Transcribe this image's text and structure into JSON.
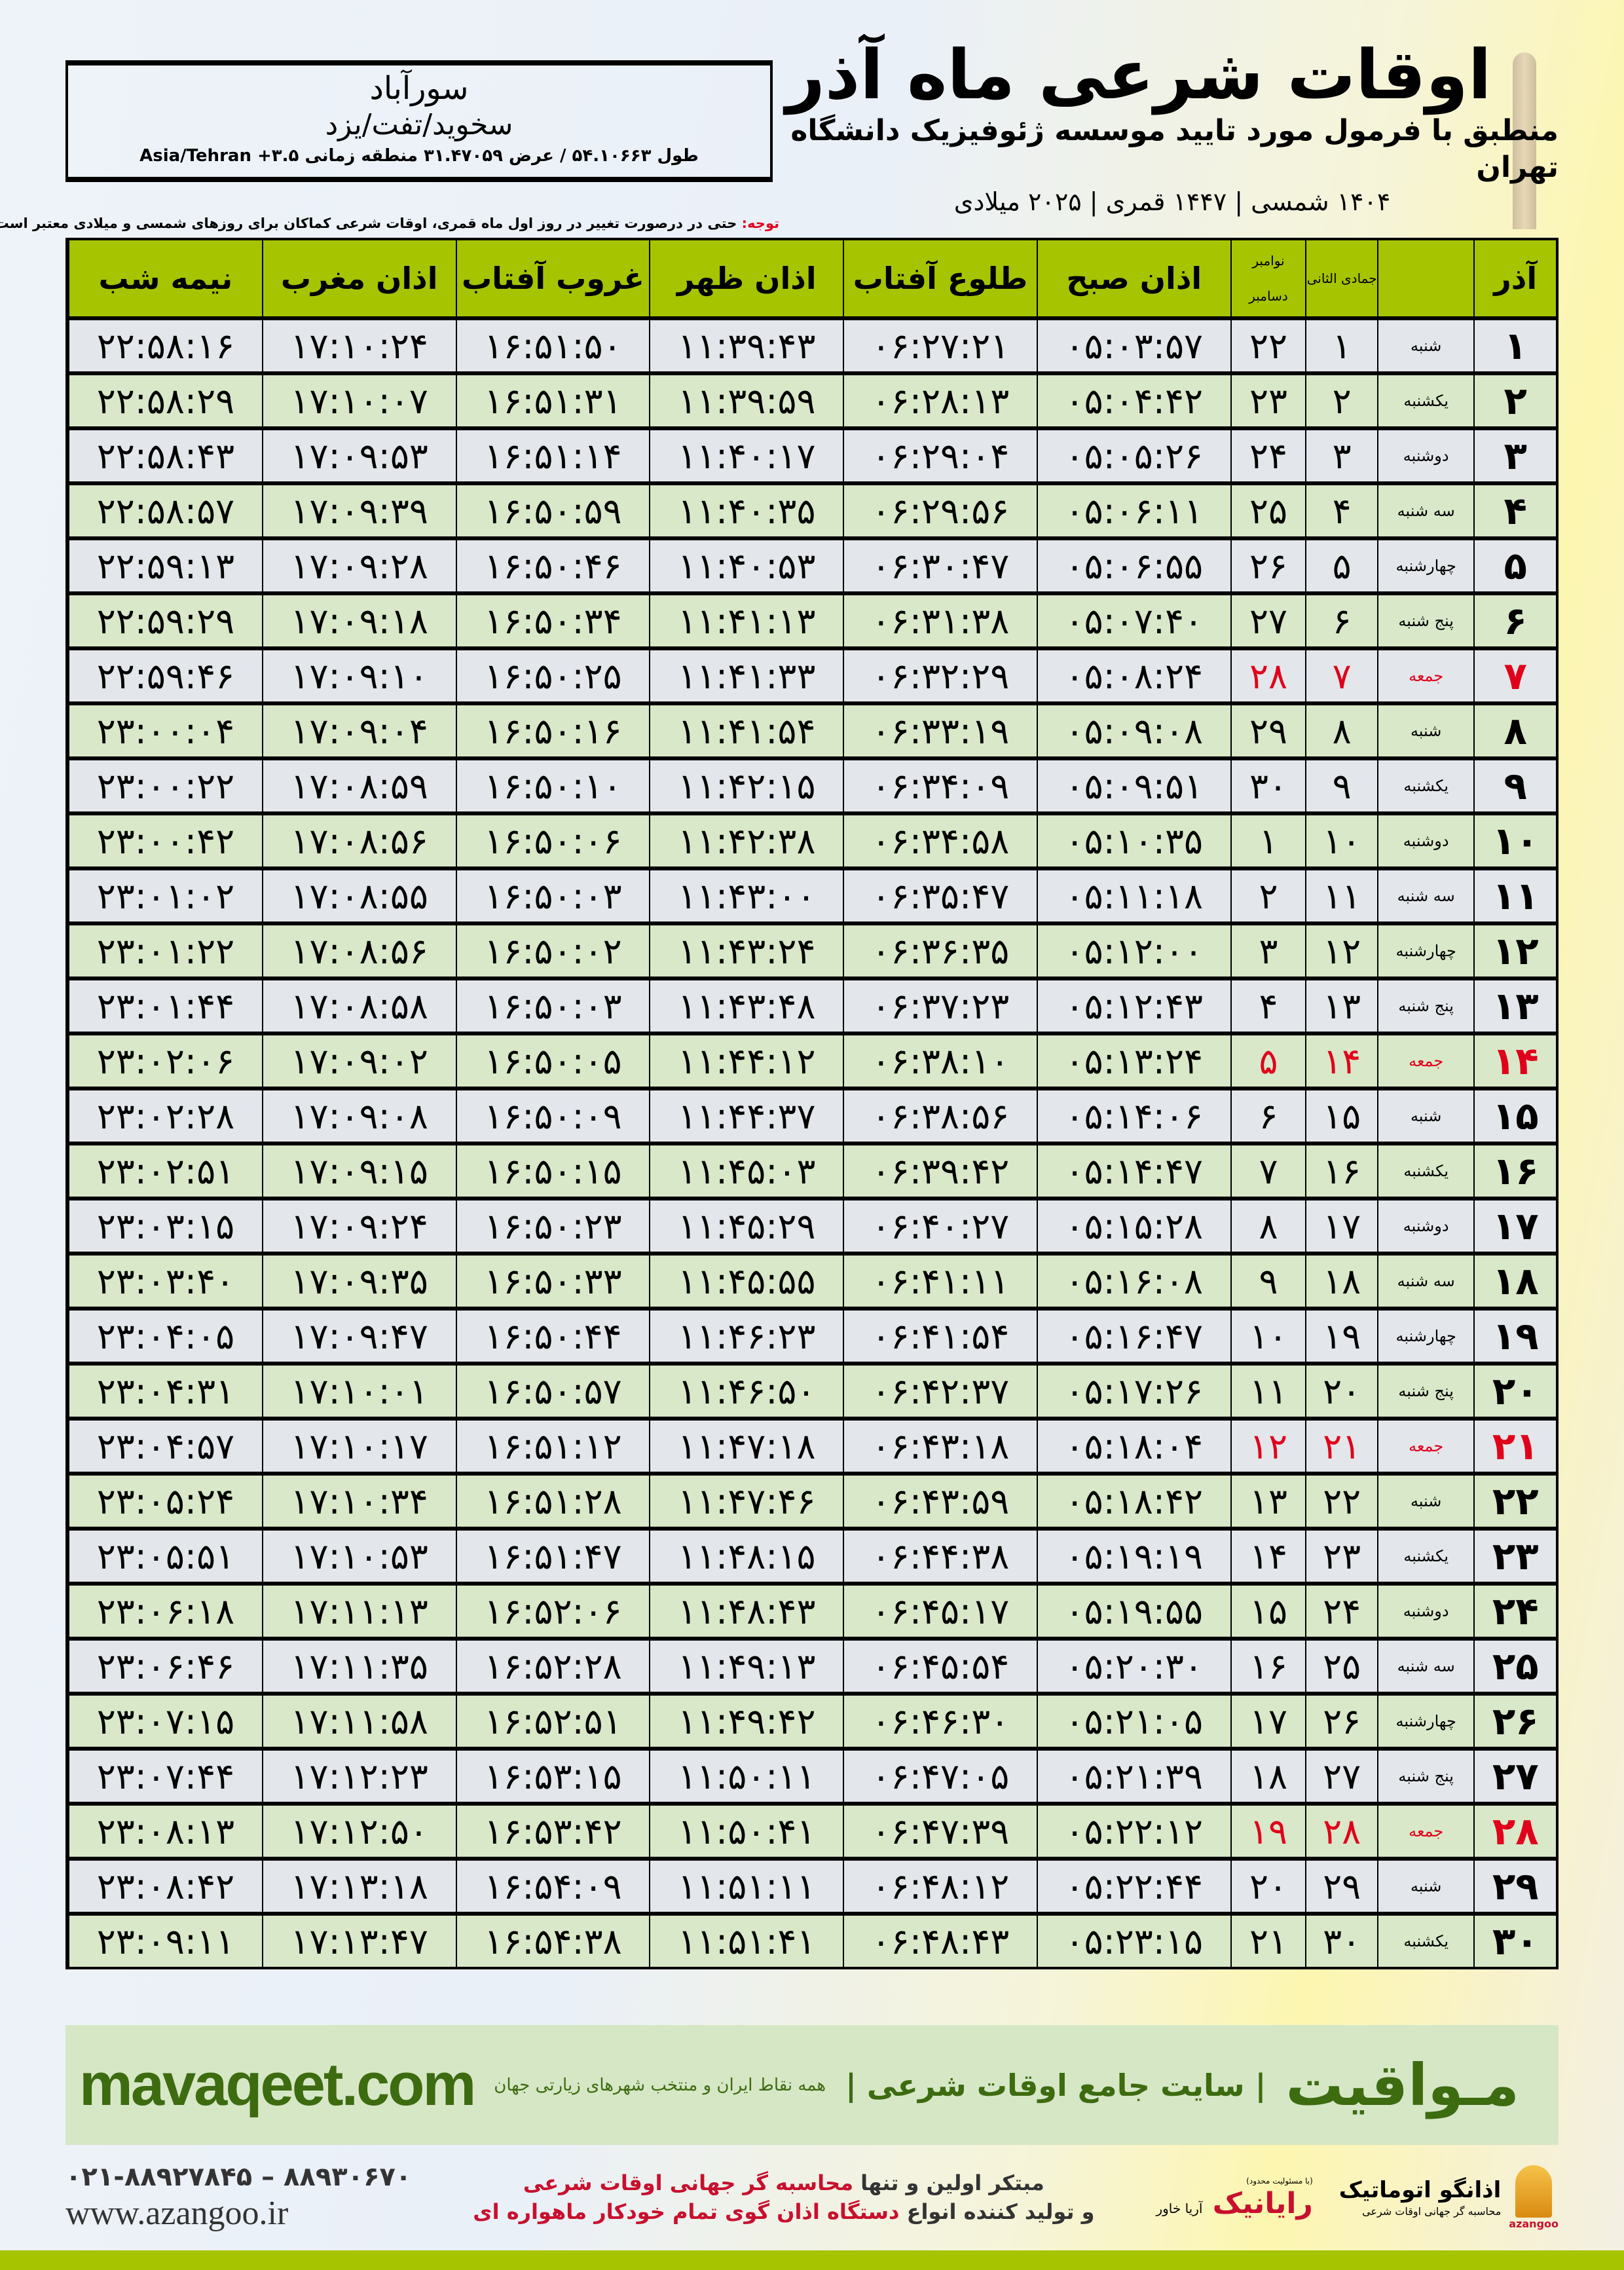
{
  "info": {
    "city": "سورآباد",
    "region": "سخوید/تفت/یزد",
    "coords": "طول ۵۴.۱۰۶۶۳ / عرض ۳۱.۴۷۰۵۹ منطقه زمانی ۳.۵+ Asia/Tehran"
  },
  "header": {
    "title": "اوقات شرعی ماه آذر",
    "subtitle": "منطبق با فرمول مورد تایید موسسه ژئوفیزیک دانشگاه تهران",
    "dates": "۱۴۰۴ شمسی | ۱۴۴۷ قمری | ۲۰۲۵ میلادی"
  },
  "note": {
    "label": "توجه:",
    "text": " حتی در درصورت تغییر در روز اول ماه قمری، اوقات شرعی کماکان برای روزهای شمسی و میلادی معتبر است."
  },
  "table": {
    "columns": {
      "day": "آذر",
      "hijri": "جمادی الثانی",
      "greg_top": "نوامبر",
      "greg_bottom": "دسامبر",
      "fajr": "اذان صبح",
      "sunrise": "طلوع آفتاب",
      "dhuhr": "اذان ظهر",
      "sunset": "غروب آفتاب",
      "maghrib": "اذان مغرب",
      "midnight": "نیمه شب"
    },
    "holiday_color": "#e0001b",
    "header_color": "#a6c400",
    "rows": [
      [
        "۱",
        "شنبه",
        "۱",
        "۲۲",
        "۰۵:۰۳:۵۷",
        "۰۶:۲۷:۲۱",
        "۱۱:۳۹:۴۳",
        "۱۶:۵۱:۵۰",
        "۱۷:۱۰:۲۴",
        "۲۲:۵۸:۱۶"
      ],
      [
        "۲",
        "یکشنبه",
        "۲",
        "۲۳",
        "۰۵:۰۴:۴۲",
        "۰۶:۲۸:۱۳",
        "۱۱:۳۹:۵۹",
        "۱۶:۵۱:۳۱",
        "۱۷:۱۰:۰۷",
        "۲۲:۵۸:۲۹"
      ],
      [
        "۳",
        "دوشنبه",
        "۳",
        "۲۴",
        "۰۵:۰۵:۲۶",
        "۰۶:۲۹:۰۴",
        "۱۱:۴۰:۱۷",
        "۱۶:۵۱:۱۴",
        "۱۷:۰۹:۵۳",
        "۲۲:۵۸:۴۳"
      ],
      [
        "۴",
        "سه شنبه",
        "۴",
        "۲۵",
        "۰۵:۰۶:۱۱",
        "۰۶:۲۹:۵۶",
        "۱۱:۴۰:۳۵",
        "۱۶:۵۰:۵۹",
        "۱۷:۰۹:۳۹",
        "۲۲:۵۸:۵۷"
      ],
      [
        "۵",
        "چهارشنبه",
        "۵",
        "۲۶",
        "۰۵:۰۶:۵۵",
        "۰۶:۳۰:۴۷",
        "۱۱:۴۰:۵۳",
        "۱۶:۵۰:۴۶",
        "۱۷:۰۹:۲۸",
        "۲۲:۵۹:۱۳"
      ],
      [
        "۶",
        "پنج شنبه",
        "۶",
        "۲۷",
        "۰۵:۰۷:۴۰",
        "۰۶:۳۱:۳۸",
        "۱۱:۴۱:۱۳",
        "۱۶:۵۰:۳۴",
        "۱۷:۰۹:۱۸",
        "۲۲:۵۹:۲۹"
      ],
      [
        "۷",
        "جمعه",
        "۷",
        "۲۸",
        "۰۵:۰۸:۲۴",
        "۰۶:۳۲:۲۹",
        "۱۱:۴۱:۳۳",
        "۱۶:۵۰:۲۵",
        "۱۷:۰۹:۱۰",
        "۲۲:۵۹:۴۶"
      ],
      [
        "۸",
        "شنبه",
        "۸",
        "۲۹",
        "۰۵:۰۹:۰۸",
        "۰۶:۳۳:۱۹",
        "۱۱:۴۱:۵۴",
        "۱۶:۵۰:۱۶",
        "۱۷:۰۹:۰۴",
        "۲۳:۰۰:۰۴"
      ],
      [
        "۹",
        "یکشنبه",
        "۹",
        "۳۰",
        "۰۵:۰۹:۵۱",
        "۰۶:۳۴:۰۹",
        "۱۱:۴۲:۱۵",
        "۱۶:۵۰:۱۰",
        "۱۷:۰۸:۵۹",
        "۲۳:۰۰:۲۲"
      ],
      [
        "۱۰",
        "دوشنبه",
        "۱۰",
        "۱",
        "۰۵:۱۰:۳۵",
        "۰۶:۳۴:۵۸",
        "۱۱:۴۲:۳۸",
        "۱۶:۵۰:۰۶",
        "۱۷:۰۸:۵۶",
        "۲۳:۰۰:۴۲"
      ],
      [
        "۱۱",
        "سه شنبه",
        "۱۱",
        "۲",
        "۰۵:۱۱:۱۸",
        "۰۶:۳۵:۴۷",
        "۱۱:۴۳:۰۰",
        "۱۶:۵۰:۰۳",
        "۱۷:۰۸:۵۵",
        "۲۳:۰۱:۰۲"
      ],
      [
        "۱۲",
        "چهارشنبه",
        "۱۲",
        "۳",
        "۰۵:۱۲:۰۰",
        "۰۶:۳۶:۳۵",
        "۱۱:۴۳:۲۴",
        "۱۶:۵۰:۰۲",
        "۱۷:۰۸:۵۶",
        "۲۳:۰۱:۲۲"
      ],
      [
        "۱۳",
        "پنج شنبه",
        "۱۳",
        "۴",
        "۰۵:۱۲:۴۳",
        "۰۶:۳۷:۲۳",
        "۱۱:۴۳:۴۸",
        "۱۶:۵۰:۰۳",
        "۱۷:۰۸:۵۸",
        "۲۳:۰۱:۴۴"
      ],
      [
        "۱۴",
        "جمعه",
        "۱۴",
        "۵",
        "۰۵:۱۳:۲۴",
        "۰۶:۳۸:۱۰",
        "۱۱:۴۴:۱۲",
        "۱۶:۵۰:۰۵",
        "۱۷:۰۹:۰۲",
        "۲۳:۰۲:۰۶"
      ],
      [
        "۱۵",
        "شنبه",
        "۱۵",
        "۶",
        "۰۵:۱۴:۰۶",
        "۰۶:۳۸:۵۶",
        "۱۱:۴۴:۳۷",
        "۱۶:۵۰:۰۹",
        "۱۷:۰۹:۰۸",
        "۲۳:۰۲:۲۸"
      ],
      [
        "۱۶",
        "یکشنبه",
        "۱۶",
        "۷",
        "۰۵:۱۴:۴۷",
        "۰۶:۳۹:۴۲",
        "۱۱:۴۵:۰۳",
        "۱۶:۵۰:۱۵",
        "۱۷:۰۹:۱۵",
        "۲۳:۰۲:۵۱"
      ],
      [
        "۱۷",
        "دوشنبه",
        "۱۷",
        "۸",
        "۰۵:۱۵:۲۸",
        "۰۶:۴۰:۲۷",
        "۱۱:۴۵:۲۹",
        "۱۶:۵۰:۲۳",
        "۱۷:۰۹:۲۴",
        "۲۳:۰۳:۱۵"
      ],
      [
        "۱۸",
        "سه شنبه",
        "۱۸",
        "۹",
        "۰۵:۱۶:۰۸",
        "۰۶:۴۱:۱۱",
        "۱۱:۴۵:۵۵",
        "۱۶:۵۰:۳۳",
        "۱۷:۰۹:۳۵",
        "۲۳:۰۳:۴۰"
      ],
      [
        "۱۹",
        "چهارشنبه",
        "۱۹",
        "۱۰",
        "۰۵:۱۶:۴۷",
        "۰۶:۴۱:۵۴",
        "۱۱:۴۶:۲۳",
        "۱۶:۵۰:۴۴",
        "۱۷:۰۹:۴۷",
        "۲۳:۰۴:۰۵"
      ],
      [
        "۲۰",
        "پنج شنبه",
        "۲۰",
        "۱۱",
        "۰۵:۱۷:۲۶",
        "۰۶:۴۲:۳۷",
        "۱۱:۴۶:۵۰",
        "۱۶:۵۰:۵۷",
        "۱۷:۱۰:۰۱",
        "۲۳:۰۴:۳۱"
      ],
      [
        "۲۱",
        "جمعه",
        "۲۱",
        "۱۲",
        "۰۵:۱۸:۰۴",
        "۰۶:۴۳:۱۸",
        "۱۱:۴۷:۱۸",
        "۱۶:۵۱:۱۲",
        "۱۷:۱۰:۱۷",
        "۲۳:۰۴:۵۷"
      ],
      [
        "۲۲",
        "شنبه",
        "۲۲",
        "۱۳",
        "۰۵:۱۸:۴۲",
        "۰۶:۴۳:۵۹",
        "۱۱:۴۷:۴۶",
        "۱۶:۵۱:۲۸",
        "۱۷:۱۰:۳۴",
        "۲۳:۰۵:۲۴"
      ],
      [
        "۲۳",
        "یکشنبه",
        "۲۳",
        "۱۴",
        "۰۵:۱۹:۱۹",
        "۰۶:۴۴:۳۸",
        "۱۱:۴۸:۱۵",
        "۱۶:۵۱:۴۷",
        "۱۷:۱۰:۵۳",
        "۲۳:۰۵:۵۱"
      ],
      [
        "۲۴",
        "دوشنبه",
        "۲۴",
        "۱۵",
        "۰۵:۱۹:۵۵",
        "۰۶:۴۵:۱۷",
        "۱۱:۴۸:۴۳",
        "۱۶:۵۲:۰۶",
        "۱۷:۱۱:۱۳",
        "۲۳:۰۶:۱۸"
      ],
      [
        "۲۵",
        "سه شنبه",
        "۲۵",
        "۱۶",
        "۰۵:۲۰:۳۰",
        "۰۶:۴۵:۵۴",
        "۱۱:۴۹:۱۳",
        "۱۶:۵۲:۲۸",
        "۱۷:۱۱:۳۵",
        "۲۳:۰۶:۴۶"
      ],
      [
        "۲۶",
        "چهارشنبه",
        "۲۶",
        "۱۷",
        "۰۵:۲۱:۰۵",
        "۰۶:۴۶:۳۰",
        "۱۱:۴۹:۴۲",
        "۱۶:۵۲:۵۱",
        "۱۷:۱۱:۵۸",
        "۲۳:۰۷:۱۵"
      ],
      [
        "۲۷",
        "پنج شنبه",
        "۲۷",
        "۱۸",
        "۰۵:۲۱:۳۹",
        "۰۶:۴۷:۰۵",
        "۱۱:۵۰:۱۱",
        "۱۶:۵۳:۱۵",
        "۱۷:۱۲:۲۳",
        "۲۳:۰۷:۴۴"
      ],
      [
        "۲۸",
        "جمعه",
        "۲۸",
        "۱۹",
        "۰۵:۲۲:۱۲",
        "۰۶:۴۷:۳۹",
        "۱۱:۵۰:۴۱",
        "۱۶:۵۳:۴۲",
        "۱۷:۱۲:۵۰",
        "۲۳:۰۸:۱۳"
      ],
      [
        "۲۹",
        "شنبه",
        "۲۹",
        "۲۰",
        "۰۵:۲۲:۴۴",
        "۰۶:۴۸:۱۲",
        "۱۱:۵۱:۱۱",
        "۱۶:۵۴:۰۹",
        "۱۷:۱۳:۱۸",
        "۲۳:۰۸:۴۲"
      ],
      [
        "۳۰",
        "یکشنبه",
        "۳۰",
        "۲۱",
        "۰۵:۲۳:۱۵",
        "۰۶:۴۸:۴۳",
        "۱۱:۵۱:۴۱",
        "۱۶:۵۴:۳۸",
        "۱۷:۱۳:۴۷",
        "۲۳:۰۹:۱۱"
      ]
    ]
  },
  "footer": {
    "logo": "مـواقیت",
    "slogan": "| سایت جامع اوقات شرعی |",
    "slogan_sub": "همه نقاط ایران و منتخب شهرهای زیارتی جهان",
    "url": "mavaqeet.com",
    "promo1_a": "مبتکر اولین و تنها ",
    "promo1_b": "محاسبه گر جهانی اوقات شرعی",
    "promo2_a": "و تولید کننده انواع ",
    "promo2_b": "دستگاه اذان گوی تمام خودکار ماهواره ای",
    "phones": "۰۲۱-۸۸۹۲۷۸۴۵ – ۸۸۹۳۰۶۷۰",
    "website": "www.azangoo.ir",
    "rayanik": "رایانیک",
    "rayanik_sub": "آریا خاور",
    "rayanik_note": "(با مسئولیت محدود)",
    "azangoo_name": "اذانگو اتوماتیک",
    "azangoo_tag": "محاسبه گر جهانی اوقات شرعی",
    "azangoo_brand": "azangoo",
    "brand_color": "#3d6b10"
  }
}
